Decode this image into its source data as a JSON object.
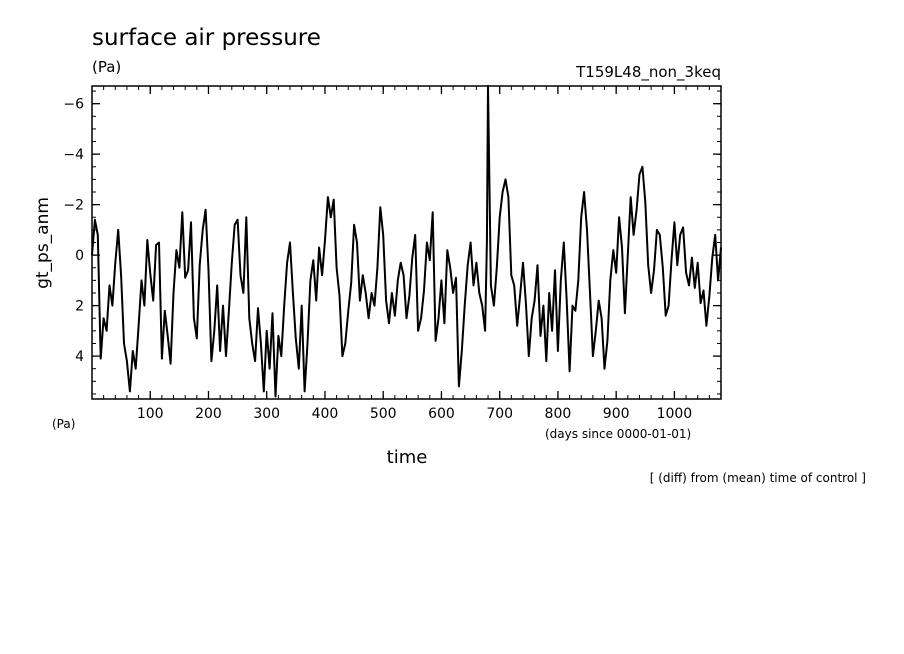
{
  "chart_data": {
    "type": "line",
    "title": "surface air pressure",
    "title_unit": "(Pa)",
    "run_label": "T159L48_non_3keq",
    "ylabel": "gt_ps_anm",
    "y_unit": "(Pa)",
    "xlabel": "time",
    "x_unit": "(days since 0000-01-01)",
    "footnote": "[ (diff) from (mean) time of control ]",
    "xlim": [
      0,
      1080
    ],
    "ylim": [
      5.7,
      -6.7
    ],
    "y_inverted": true,
    "x_ticks": [
      100,
      200,
      300,
      400,
      500,
      600,
      700,
      800,
      900,
      1000
    ],
    "y_ticks": [
      -6,
      -4,
      -2,
      0,
      2,
      4
    ],
    "series": [
      {
        "color": "#000000",
        "x": [
          0,
          5,
          10,
          15,
          20,
          25,
          30,
          35,
          40,
          45,
          50,
          55,
          60,
          65,
          70,
          75,
          80,
          85,
          90,
          95,
          100,
          105,
          110,
          115,
          120,
          125,
          130,
          135,
          140,
          145,
          150,
          155,
          160,
          165,
          170,
          175,
          180,
          185,
          190,
          195,
          200,
          205,
          210,
          215,
          220,
          225,
          230,
          235,
          240,
          245,
          250,
          255,
          260,
          265,
          270,
          275,
          280,
          285,
          290,
          295,
          300,
          305,
          310,
          315,
          320,
          325,
          330,
          335,
          340,
          345,
          350,
          355,
          360,
          365,
          370,
          375,
          380,
          385,
          390,
          395,
          400,
          405,
          410,
          415,
          420,
          425,
          430,
          435,
          440,
          445,
          450,
          455,
          460,
          465,
          470,
          475,
          480,
          485,
          490,
          495,
          500,
          505,
          510,
          515,
          520,
          525,
          530,
          535,
          540,
          545,
          550,
          555,
          560,
          565,
          570,
          575,
          580,
          585,
          590,
          595,
          600,
          605,
          610,
          615,
          620,
          625,
          630,
          635,
          640,
          645,
          650,
          655,
          660,
          665,
          670,
          675,
          678,
          680,
          685,
          690,
          695,
          700,
          705,
          710,
          715,
          720,
          725,
          730,
          735,
          740,
          745,
          750,
          755,
          760,
          765,
          770,
          775,
          780,
          785,
          790,
          795,
          800,
          805,
          810,
          815,
          820,
          825,
          830,
          835,
          840,
          845,
          850,
          855,
          860,
          865,
          870,
          875,
          880,
          885,
          890,
          895,
          900,
          905,
          910,
          915,
          920,
          925,
          930,
          935,
          940,
          945,
          950,
          955,
          960,
          965,
          970,
          975,
          980,
          985,
          990,
          995,
          1000,
          1005,
          1010,
          1015,
          1020,
          1025,
          1030,
          1035,
          1040,
          1045,
          1050,
          1055,
          1060,
          1065,
          1070,
          1075,
          1080
        ],
        "values": [
          0,
          -1.4,
          -0.8,
          4.1,
          2.5,
          3.0,
          1.2,
          2.0,
          0.3,
          -1.0,
          0.8,
          3.5,
          4.2,
          5.4,
          3.8,
          4.5,
          2.8,
          1.0,
          2.0,
          -0.6,
          0.7,
          1.8,
          -0.4,
          -0.5,
          4.1,
          2.2,
          3.2,
          4.3,
          1.5,
          -0.2,
          0.5,
          -1.7,
          0.9,
          0.6,
          -1.3,
          2.5,
          3.3,
          0.4,
          -1.0,
          -1.8,
          0.6,
          4.2,
          3.0,
          1.2,
          3.8,
          2.0,
          4.0,
          2.2,
          0.3,
          -1.2,
          -1.4,
          0.8,
          1.5,
          -1.5,
          2.5,
          3.5,
          4.2,
          2.1,
          3.5,
          5.4,
          3.0,
          4.5,
          2.3,
          5.6,
          3.2,
          4.0,
          2.0,
          0.3,
          -0.5,
          1.5,
          3.3,
          4.5,
          2.0,
          5.4,
          3.5,
          1.0,
          0.2,
          1.8,
          -0.3,
          0.8,
          -0.6,
          -2.3,
          -1.5,
          -2.2,
          0.5,
          1.6,
          4.0,
          3.5,
          2.2,
          1.1,
          -1.2,
          -0.5,
          1.8,
          0.8,
          1.5,
          2.5,
          1.5,
          2.0,
          0.5,
          -1.9,
          -0.8,
          1.8,
          2.7,
          1.5,
          2.4,
          1.0,
          0.3,
          0.8,
          2.5,
          1.6,
          0.1,
          -0.8,
          3.0,
          2.5,
          1.4,
          -0.5,
          0.2,
          -1.7,
          3.4,
          2.5,
          1.0,
          2.7,
          -0.2,
          0.5,
          1.5,
          0.9,
          5.2,
          3.8,
          2.0,
          0.4,
          -0.5,
          1.2,
          0.3,
          1.5,
          2.0,
          3.0,
          -0.5,
          -6.7,
          1.2,
          2.0,
          0.5,
          -1.5,
          -2.5,
          -3.0,
          -2.3,
          0.8,
          1.2,
          2.8,
          1.6,
          0.3,
          1.9,
          4.0,
          2.5,
          1.8,
          0.4,
          3.2,
          2.0,
          4.2,
          1.5,
          3.0,
          0.6,
          3.8,
          1.0,
          -0.5,
          1.8,
          4.6,
          2.0,
          2.2,
          1.0,
          -1.5,
          -2.5,
          -1.0,
          1.5,
          4.0,
          3.0,
          1.8,
          2.5,
          4.5,
          3.4,
          1.0,
          -0.2,
          0.7,
          -1.5,
          -0.3,
          2.3,
          0.0,
          -2.3,
          -0.8,
          -1.8,
          -3.2,
          -3.5,
          -2.1,
          0.4,
          1.5,
          0.6,
          -1.0,
          -0.8,
          0.5,
          2.4,
          2.0,
          0.2,
          -1.3,
          0.4,
          -0.8,
          -1.1,
          0.7,
          1.2,
          0.1,
          1.3,
          0.3,
          1.9,
          1.4,
          2.8,
          1.6,
          0.1,
          -0.8,
          1.0,
          -0.3
        ]
      }
    ]
  }
}
